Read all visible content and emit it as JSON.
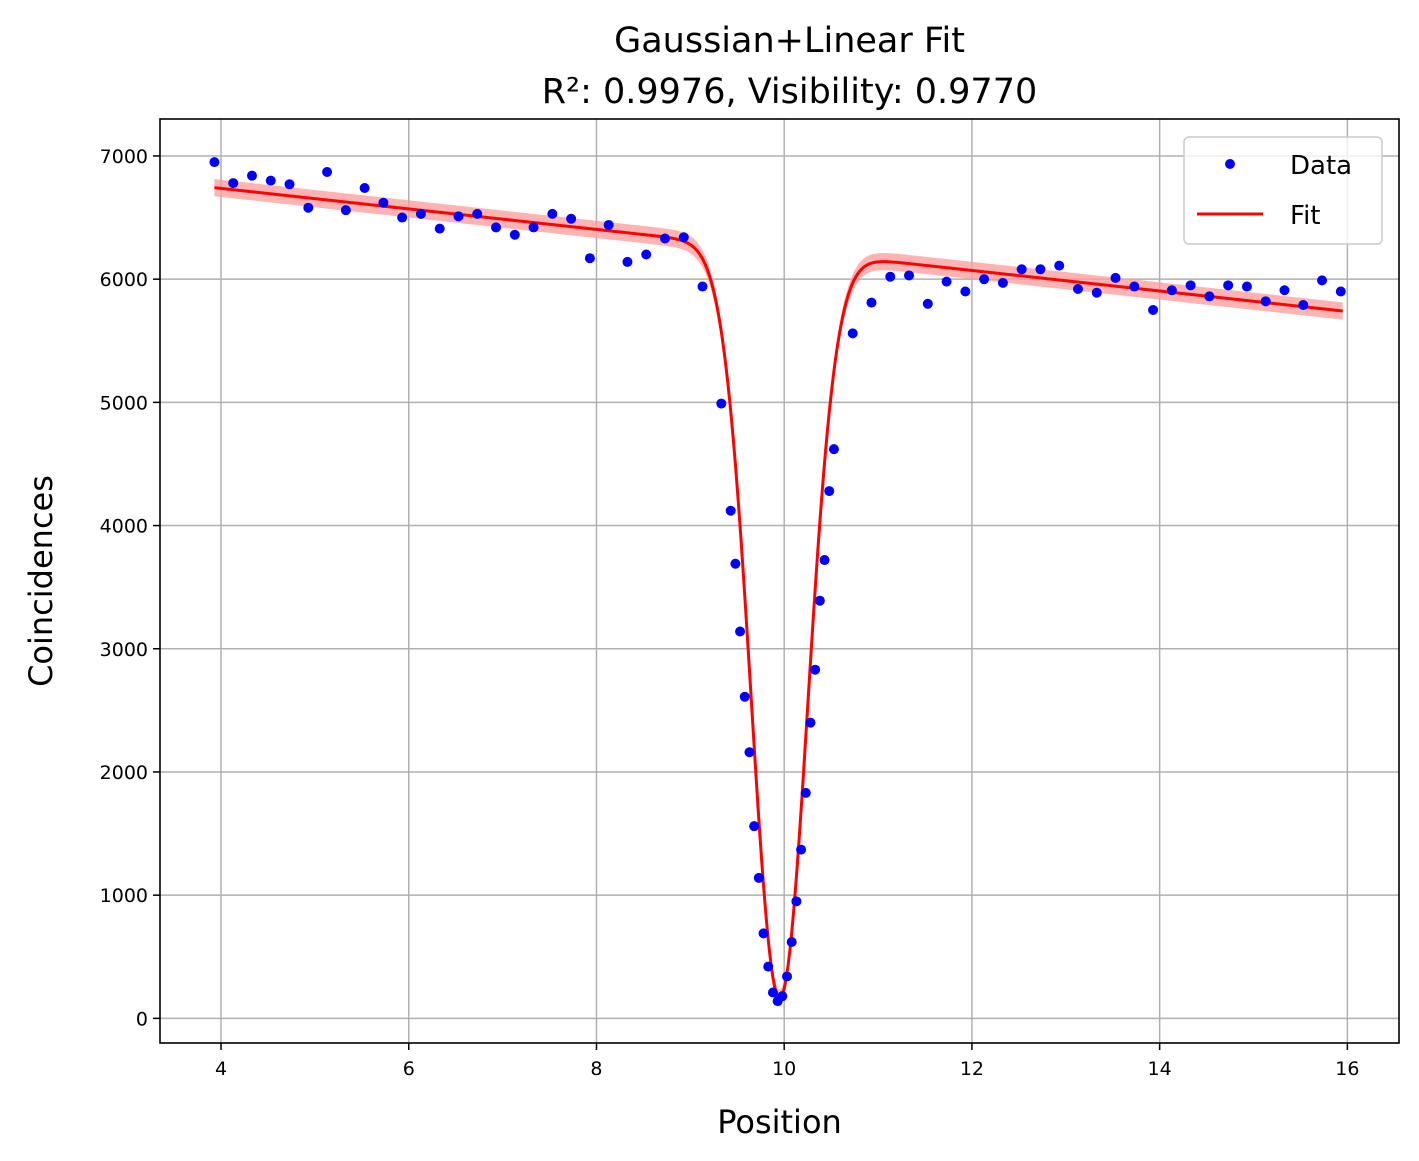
{
  "chart_data": {
    "type": "scatter",
    "title": "Gaussian+Linear Fit",
    "subtitle": "R²: 0.9976, Visibility: 0.9770",
    "xlabel": "Position",
    "ylabel": "Coincidences",
    "xlim": [
      3.35,
      16.55
    ],
    "ylim": [
      -200,
      7300
    ],
    "xticks": [
      4,
      6,
      8,
      10,
      12,
      14,
      16
    ],
    "yticks": [
      0,
      1000,
      2000,
      3000,
      4000,
      5000,
      6000,
      7000
    ],
    "grid": true,
    "legend_position": "top-right",
    "colors": {
      "data": "#0000ff",
      "fit": "#ff0000",
      "band": "#ff9999",
      "grid": "#b0b0b0"
    },
    "series": [
      {
        "name": "Data",
        "kind": "points",
        "x": [
          3.93,
          4.13,
          4.33,
          4.53,
          4.73,
          4.93,
          5.13,
          5.33,
          5.53,
          5.73,
          5.93,
          6.13,
          6.33,
          6.53,
          6.73,
          6.93,
          7.13,
          7.33,
          7.53,
          7.73,
          7.93,
          8.13,
          8.33,
          8.53,
          8.73,
          8.93,
          9.13,
          9.33,
          9.43,
          9.48,
          9.53,
          9.58,
          9.63,
          9.68,
          9.73,
          9.78,
          9.83,
          9.88,
          9.93,
          9.98,
          10.03,
          10.08,
          10.13,
          10.18,
          10.23,
          10.28,
          10.33,
          10.38,
          10.43,
          10.48,
          10.53,
          10.73,
          10.93,
          11.13,
          11.33,
          11.53,
          11.73,
          11.93,
          12.13,
          12.33,
          12.53,
          12.73,
          12.93,
          13.13,
          13.33,
          13.53,
          13.73,
          13.93,
          14.13,
          14.33,
          14.53,
          14.73,
          14.93,
          15.13,
          15.33,
          15.53,
          15.73,
          15.93
        ],
        "y": [
          6950,
          6780,
          6840,
          6800,
          6770,
          6580,
          6870,
          6560,
          6740,
          6620,
          6500,
          6530,
          6410,
          6510,
          6530,
          6420,
          6360,
          6420,
          6530,
          6490,
          6170,
          6440,
          6140,
          6200,
          6330,
          6340,
          5940,
          4990,
          4120,
          3690,
          3140,
          2610,
          2160,
          1560,
          1140,
          690,
          420,
          210,
          140,
          180,
          340,
          620,
          950,
          1370,
          1830,
          2400,
          2830,
          3390,
          3720,
          4280,
          4620,
          5560,
          5810,
          6020,
          6030,
          5800,
          5980,
          5900,
          6000,
          5970,
          6080,
          6080,
          6110,
          5920,
          5890,
          6010,
          5940,
          5750,
          5910,
          5950,
          5860,
          5950,
          5940,
          5820,
          5910,
          5790,
          5990,
          5900
        ]
      },
      {
        "name": "Fit",
        "kind": "line",
        "model": "gaussian_plus_linear",
        "x_range": [
          3.93,
          15.95
        ],
        "params": {
          "slope": -83.3,
          "intercept": 7070,
          "amplitude": 6080,
          "center": 9.95,
          "sigma": 0.3,
          "band_halfwidth": 70
        }
      }
    ]
  }
}
